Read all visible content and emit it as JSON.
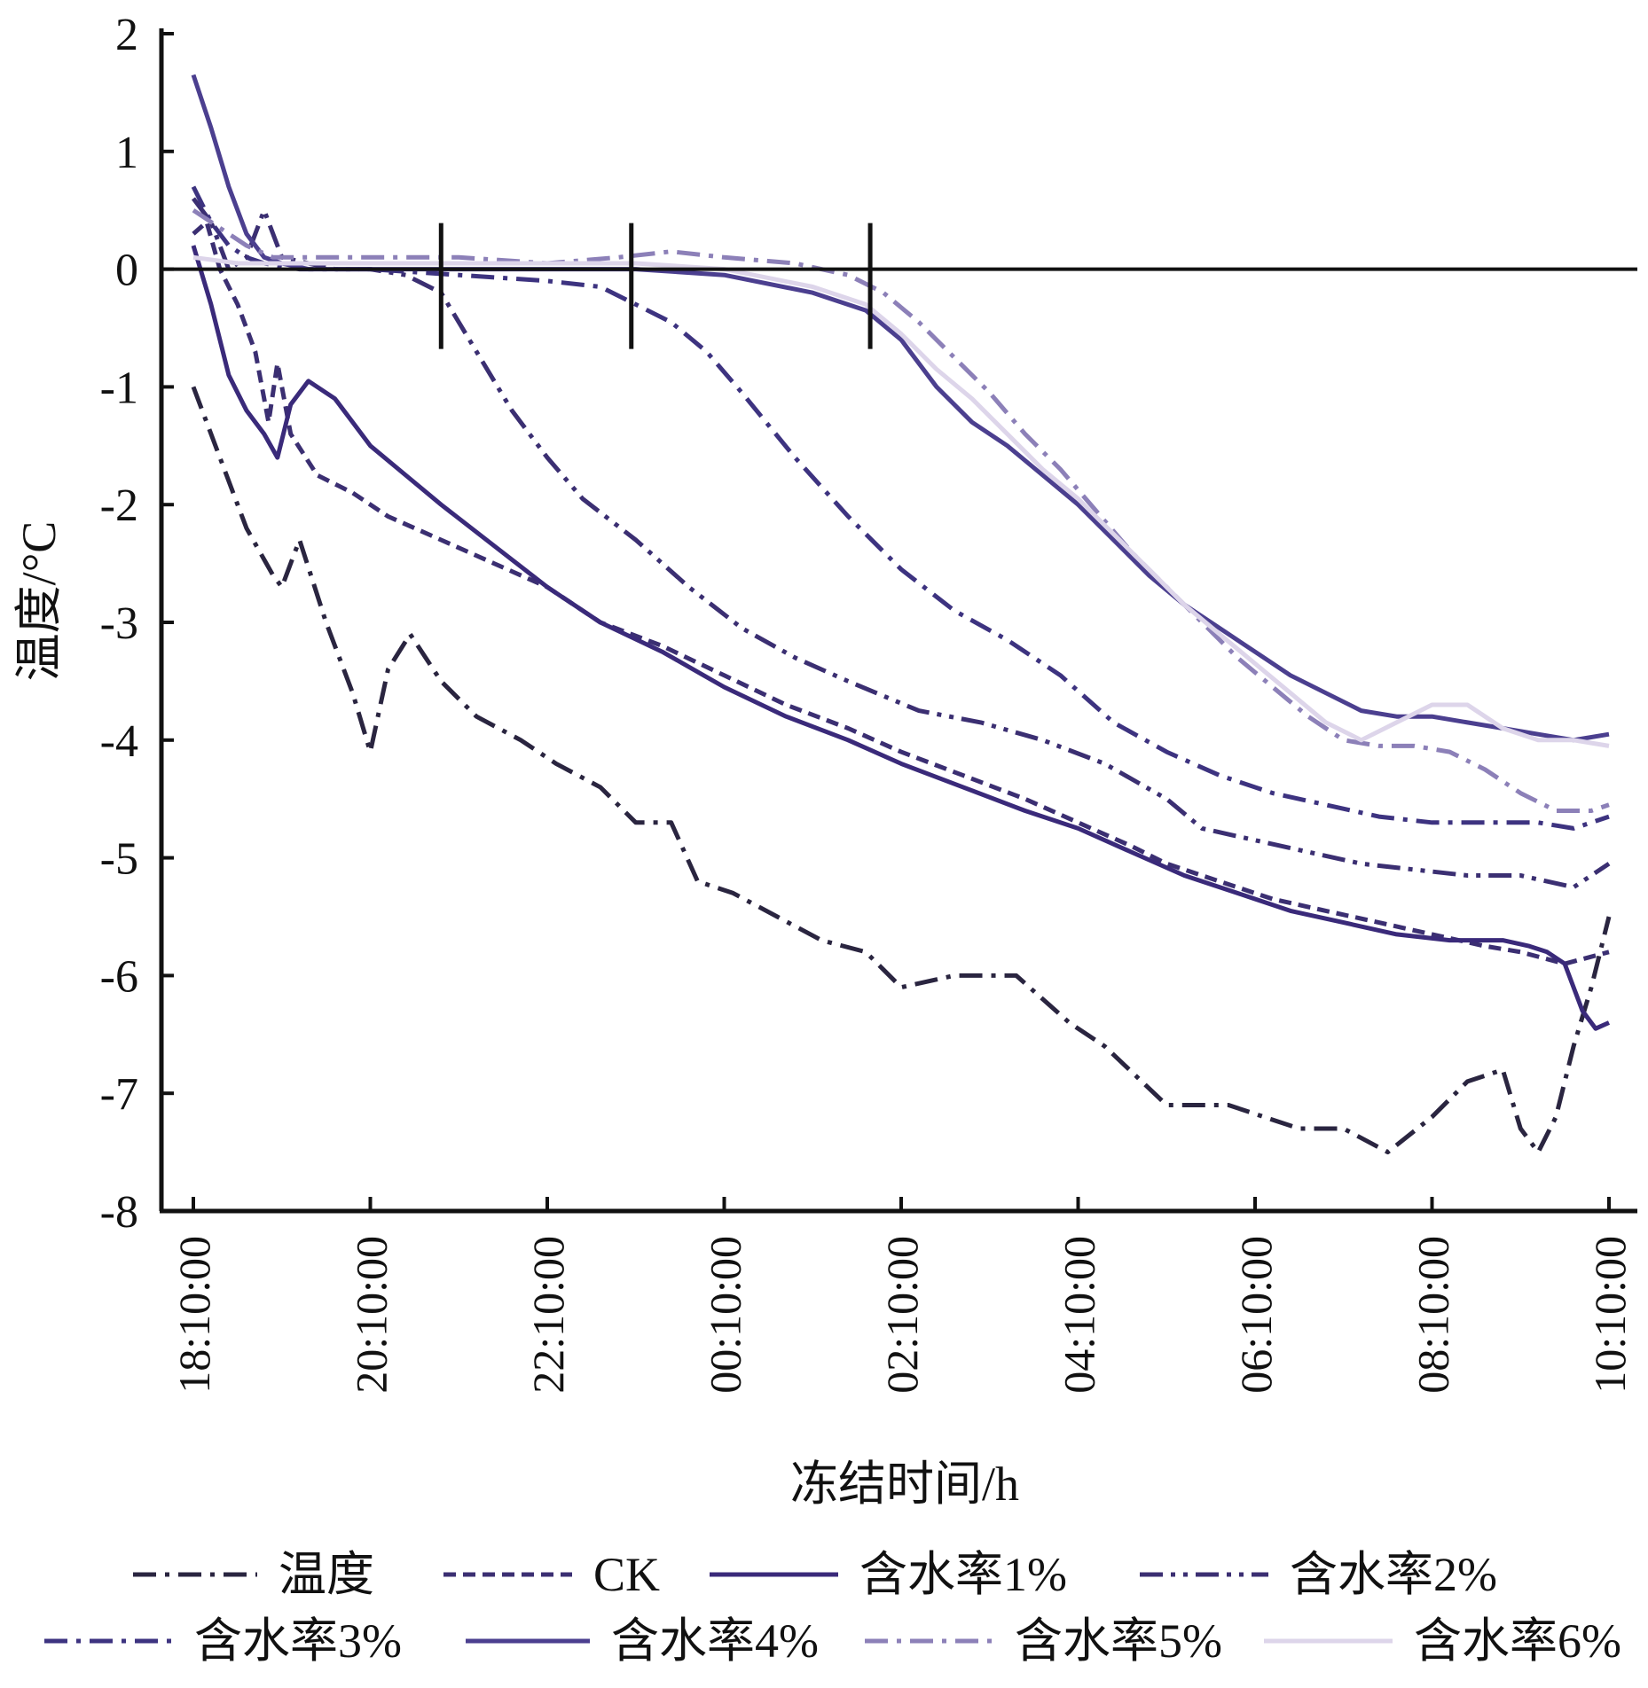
{
  "chart_data": {
    "type": "line",
    "xlabel": "冻结时间/h",
    "ylabel": "温度/°C",
    "ylim": [
      -8,
      2
    ],
    "yticks": [
      "2",
      "1",
      "0",
      "-1",
      "-2",
      "-3",
      "-4",
      "-5",
      "-6",
      "-7",
      "-8"
    ],
    "xticks": [
      "18:10:00",
      "20:10:00",
      "22:10:00",
      "00:10:00",
      "02:10:00",
      "04:10:00",
      "06:10:00",
      "08:10:00",
      "10:10:00"
    ],
    "x_unit": "hours after 18:10:00",
    "xlim": [
      0,
      16
    ],
    "grid": false,
    "legend_position": "bottom",
    "reference_line": {
      "y": 0
    },
    "markers": [
      {
        "x": 2.8
      },
      {
        "x": 4.95
      },
      {
        "x": 7.65
      }
    ],
    "series": [
      {
        "name": "温度",
        "color": "#2a2540",
        "dash": "dashdot",
        "x": [
          0,
          0.3,
          0.6,
          0.9,
          1.0,
          1.1,
          1.2,
          1.5,
          1.8,
          2.0,
          2.2,
          2.45,
          2.8,
          3.2,
          3.7,
          4.1,
          4.6,
          5.0,
          5.4,
          5.7,
          6.1,
          6.6,
          7.1,
          7.6,
          8.0,
          8.6,
          9.3,
          9.9,
          10.3,
          11.0,
          11.7,
          12.1,
          12.5,
          13.0,
          13.5,
          14.0,
          14.4,
          14.8,
          15.0,
          15.2,
          15.4,
          15.6,
          15.8,
          16.0
        ],
        "y": [
          -1.0,
          -1.6,
          -2.2,
          -2.6,
          -2.7,
          -2.5,
          -2.3,
          -3.0,
          -3.6,
          -4.1,
          -3.4,
          -3.1,
          -3.5,
          -3.8,
          -4.0,
          -4.2,
          -4.4,
          -4.7,
          -4.7,
          -5.2,
          -5.3,
          -5.5,
          -5.7,
          -5.8,
          -6.1,
          -6.0,
          -6.0,
          -6.4,
          -6.6,
          -7.1,
          -7.1,
          -7.2,
          -7.3,
          -7.3,
          -7.5,
          -7.2,
          -6.9,
          -6.8,
          -7.3,
          -7.5,
          -7.2,
          -6.6,
          -6.1,
          -5.5
        ]
      },
      {
        "name": "CK",
        "color": "#3b2f72",
        "dash": "dashed",
        "x": [
          0,
          0.15,
          0.3,
          0.5,
          0.7,
          0.85,
          0.95,
          1.0,
          1.1,
          1.4,
          1.8,
          2.2,
          2.8,
          3.4,
          4.0,
          4.6,
          5.3,
          6.0,
          6.7,
          7.4,
          8.0,
          8.7,
          9.4,
          10.0,
          10.6,
          11.0,
          11.6,
          12.2,
          12.8,
          13.4,
          14.0,
          14.6,
          15.0,
          15.5,
          16.0
        ],
        "y": [
          0.3,
          0.4,
          0.0,
          -0.3,
          -0.7,
          -1.3,
          -0.8,
          -1.0,
          -1.4,
          -1.75,
          -1.9,
          -2.1,
          -2.3,
          -2.5,
          -2.7,
          -3.0,
          -3.2,
          -3.45,
          -3.7,
          -3.9,
          -4.1,
          -4.3,
          -4.5,
          -4.7,
          -4.9,
          -5.05,
          -5.2,
          -5.35,
          -5.45,
          -5.55,
          -5.65,
          -5.75,
          -5.8,
          -5.9,
          -5.8
        ]
      },
      {
        "name": "含水率1%",
        "color": "#3a2a7a",
        "dash": "solid",
        "x": [
          0,
          0.2,
          0.4,
          0.6,
          0.8,
          0.95,
          1.0,
          1.1,
          1.3,
          1.6,
          1.8,
          2.0,
          2.4,
          2.8,
          3.4,
          4.0,
          4.6,
          5.3,
          6.0,
          6.7,
          7.4,
          8.0,
          8.7,
          9.4,
          10.0,
          10.6,
          11.2,
          11.8,
          12.4,
          13.0,
          13.6,
          14.2,
          14.8,
          15.1,
          15.3,
          15.5,
          15.7,
          15.85,
          16.0
        ],
        "y": [
          0.2,
          -0.3,
          -0.9,
          -1.2,
          -1.4,
          -1.6,
          -1.45,
          -1.15,
          -0.95,
          -1.1,
          -1.3,
          -1.5,
          -1.75,
          -2.0,
          -2.35,
          -2.7,
          -3.0,
          -3.25,
          -3.55,
          -3.8,
          -4.0,
          -4.2,
          -4.4,
          -4.6,
          -4.75,
          -4.95,
          -5.15,
          -5.3,
          -5.45,
          -5.55,
          -5.65,
          -5.7,
          -5.7,
          -5.75,
          -5.8,
          -5.9,
          -6.3,
          -6.45,
          -6.4
        ]
      },
      {
        "name": "含水率2%",
        "color": "#3b2f72",
        "dash": "dashdotdot",
        "x": [
          0,
          0.2,
          0.4,
          0.6,
          0.7,
          0.8,
          1.0,
          1.3,
          1.6,
          2.0,
          2.4,
          2.8,
          3.2,
          3.6,
          4.0,
          4.4,
          5.0,
          5.6,
          6.2,
          6.8,
          7.4,
          8.2,
          8.9,
          9.6,
          10.3,
          11.0,
          11.4,
          12.0,
          12.6,
          13.2,
          13.8,
          14.4,
          15.0,
          15.6,
          16.0
        ],
        "y": [
          0.6,
          0.4,
          0.0,
          0.1,
          0.3,
          0.5,
          0.1,
          0.05,
          0.0,
          0.0,
          -0.05,
          -0.2,
          -0.7,
          -1.2,
          -1.6,
          -1.95,
          -2.3,
          -2.7,
          -3.05,
          -3.3,
          -3.5,
          -3.75,
          -3.85,
          -4.0,
          -4.2,
          -4.5,
          -4.75,
          -4.85,
          -4.95,
          -5.05,
          -5.1,
          -5.15,
          -5.15,
          -5.25,
          -5.05
        ]
      },
      {
        "name": "含水率3%",
        "color": "#3d3380",
        "dash": "dashdot",
        "x": [
          0,
          0.2,
          0.4,
          0.6,
          0.8,
          1.2,
          2.0,
          3.0,
          4.0,
          4.6,
          5.0,
          5.4,
          5.8,
          6.2,
          6.8,
          7.4,
          8.0,
          8.6,
          9.2,
          9.8,
          10.4,
          11.0,
          11.6,
          12.2,
          12.8,
          13.4,
          14.0,
          14.6,
          15.2,
          15.6,
          16.0
        ],
        "y": [
          0.7,
          0.4,
          0.2,
          0.1,
          0.05,
          0.0,
          0.0,
          -0.05,
          -0.1,
          -0.15,
          -0.3,
          -0.45,
          -0.7,
          -1.05,
          -1.6,
          -2.1,
          -2.55,
          -2.9,
          -3.15,
          -3.45,
          -3.85,
          -4.1,
          -4.3,
          -4.45,
          -4.55,
          -4.65,
          -4.7,
          -4.7,
          -4.7,
          -4.75,
          -4.65
        ]
      },
      {
        "name": "含水率4%",
        "color": "#4b3f8f",
        "dash": "solid",
        "x": [
          0,
          0.2,
          0.4,
          0.6,
          0.8,
          1.0,
          1.3,
          1.6,
          2.0,
          3.0,
          4.0,
          5.0,
          6.0,
          7.0,
          7.6,
          8.0,
          8.4,
          8.8,
          9.2,
          9.6,
          10.0,
          10.4,
          10.8,
          11.2,
          11.6,
          12.0,
          12.4,
          12.8,
          13.2,
          13.6,
          14.0,
          14.4,
          14.8,
          15.2,
          15.6,
          16.0
        ],
        "y": [
          1.65,
          1.2,
          0.7,
          0.3,
          0.1,
          0.05,
          0.0,
          0.0,
          0.0,
          0.0,
          0.0,
          0.0,
          -0.05,
          -0.2,
          -0.35,
          -0.6,
          -1.0,
          -1.3,
          -1.5,
          -1.75,
          -2.0,
          -2.3,
          -2.6,
          -2.85,
          -3.05,
          -3.25,
          -3.45,
          -3.6,
          -3.75,
          -3.8,
          -3.8,
          -3.85,
          -3.9,
          -3.95,
          -4.0,
          -3.95
        ]
      },
      {
        "name": "含水率5%",
        "color": "#8c80b8",
        "dash": "dashdot",
        "x": [
          0,
          0.3,
          0.6,
          0.9,
          1.2,
          2.0,
          3.0,
          4.0,
          4.8,
          5.4,
          6.0,
          6.8,
          7.4,
          7.8,
          8.2,
          8.6,
          9.0,
          9.4,
          9.8,
          10.2,
          10.6,
          11.0,
          11.4,
          11.8,
          12.2,
          12.6,
          13.0,
          13.4,
          13.8,
          14.2,
          14.6,
          15.0,
          15.4,
          15.8,
          16.0
        ],
        "y": [
          0.5,
          0.35,
          0.2,
          0.1,
          0.1,
          0.1,
          0.1,
          0.05,
          0.1,
          0.15,
          0.1,
          0.05,
          -0.05,
          -0.2,
          -0.45,
          -0.75,
          -1.05,
          -1.4,
          -1.7,
          -2.05,
          -2.4,
          -2.7,
          -3.0,
          -3.3,
          -3.55,
          -3.8,
          -4.0,
          -4.05,
          -4.05,
          -4.1,
          -4.25,
          -4.45,
          -4.6,
          -4.6,
          -4.55
        ]
      },
      {
        "name": "含水率6%",
        "color": "#ddd5ea",
        "dash": "solid",
        "x": [
          0,
          0.5,
          1.0,
          2.0,
          3.0,
          4.0,
          5.0,
          6.0,
          7.0,
          7.6,
          8.0,
          8.4,
          8.8,
          9.2,
          9.6,
          10.0,
          10.4,
          10.8,
          11.2,
          11.6,
          12.0,
          12.4,
          12.8,
          13.2,
          13.6,
          14.0,
          14.4,
          14.8,
          15.2,
          15.6,
          16.0
        ],
        "y": [
          0.1,
          0.05,
          0.05,
          0.05,
          0.05,
          0.05,
          0.05,
          0.0,
          -0.15,
          -0.3,
          -0.55,
          -0.85,
          -1.1,
          -1.4,
          -1.7,
          -1.95,
          -2.25,
          -2.55,
          -2.85,
          -3.1,
          -3.35,
          -3.6,
          -3.85,
          -4.0,
          -3.85,
          -3.7,
          -3.7,
          -3.9,
          -4.0,
          -4.0,
          -4.05
        ]
      }
    ]
  }
}
